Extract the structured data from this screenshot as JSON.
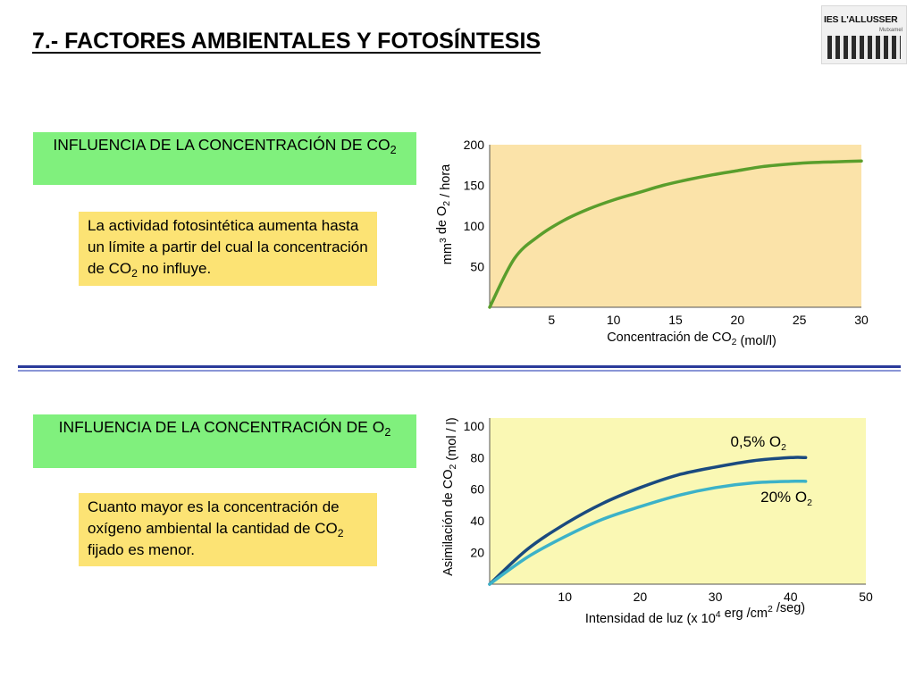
{
  "title": "7.- FACTORES AMBIENTALES Y FOTOSÍNTESIS",
  "logo": {
    "name": "IES L'ALLUSSER",
    "sub": "Mutxamel"
  },
  "section1": {
    "heading_main": "INFLUENCIA DE LA CONCENTRACIÓN DE CO",
    "heading_sub": "2",
    "text_a": "La actividad fotosintética aumenta hasta un límite a partir del cual la concentración de CO",
    "text_sub": "2",
    "text_b": " no influye."
  },
  "section2": {
    "heading_main": "INFLUENCIA DE LA CONCENTRACIÓN DE O",
    "heading_sub": "2",
    "text_a": "Cuanto mayor es la concentración de oxígeno ambiental la cantidad de CO",
    "text_sub": "2",
    "text_b": " fijado es menor."
  },
  "chart_data": [
    {
      "type": "line",
      "title": "",
      "xlabel": "Concentración de CO2 (mol/l)",
      "ylabel": "mm3 de O2 / hora",
      "xlim": [
        0,
        30
      ],
      "ylim": [
        0,
        200
      ],
      "xticks": [
        5,
        10,
        15,
        20,
        25,
        30
      ],
      "yticks": [
        50,
        100,
        150,
        200
      ],
      "grid": false,
      "background": "#fbe3a9",
      "series": [
        {
          "color": "#5a9e2c",
          "x": [
            0,
            2,
            4,
            6,
            8,
            10,
            12,
            14,
            16,
            18,
            20,
            22,
            24,
            26,
            28,
            30
          ],
          "y": [
            0,
            60,
            88,
            107,
            121,
            132,
            141,
            150,
            157,
            163,
            168,
            173,
            176,
            178,
            179,
            180
          ]
        }
      ]
    },
    {
      "type": "line",
      "title": "",
      "xlabel": "Intensidad de luz (x 104 erg /cm2 /seg)",
      "ylabel": "Asimilación de CO2 (mol / l)",
      "xlim": [
        0,
        50
      ],
      "ylim": [
        0,
        105
      ],
      "xticks": [
        10,
        20,
        30,
        40,
        50
      ],
      "yticks": [
        20,
        40,
        60,
        80,
        100
      ],
      "grid": false,
      "background": "#faf8b4",
      "series": [
        {
          "name": "0,5% O2",
          "color": "#1a4a7f",
          "x": [
            0,
            5,
            10,
            15,
            20,
            25,
            30,
            35,
            40,
            42
          ],
          "y": [
            0,
            22,
            38,
            51,
            61,
            69,
            74,
            78,
            80,
            80
          ]
        },
        {
          "name": "20% O2",
          "color": "#3cb2c8",
          "x": [
            0,
            5,
            10,
            15,
            20,
            25,
            30,
            35,
            40,
            42
          ],
          "y": [
            0,
            17,
            30,
            41,
            49,
            56,
            61,
            64,
            65,
            65
          ]
        }
      ]
    }
  ]
}
